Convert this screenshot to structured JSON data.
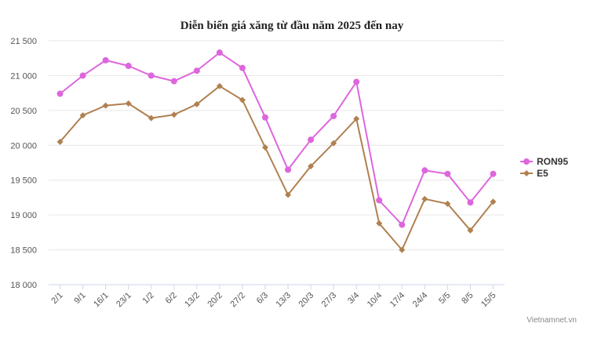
{
  "chart_data": {
    "type": "line",
    "title": "Diễn biến giá xăng từ đầu năm 2025 đến nay",
    "categories": [
      "2/1",
      "9/1",
      "16/1",
      "23/1",
      "1/2",
      "6/2",
      "13/2",
      "20/2",
      "27/2",
      "6/3",
      "13/3",
      "20/3",
      "27/3",
      "3/4",
      "10/4",
      "17/4",
      "24/4",
      "5/5",
      "8/5",
      "15/5"
    ],
    "ylim": [
      18000,
      21500
    ],
    "yticks": [
      18000,
      18500,
      19000,
      19500,
      20000,
      20500,
      21000,
      21500
    ],
    "ytick_labels": [
      "18 000",
      "18 500",
      "19 000",
      "19 500",
      "20 000",
      "20 500",
      "21 000",
      "21 500"
    ],
    "grid": true,
    "legend_position": "right",
    "series": [
      {
        "name": "RON95",
        "color": "#dd66dd",
        "marker": "circle",
        "values": [
          20740,
          21000,
          21220,
          21140,
          21000,
          20920,
          21070,
          21330,
          21110,
          20400,
          19650,
          20080,
          20420,
          20910,
          19210,
          18860,
          19640,
          19590,
          19180,
          19590
        ]
      },
      {
        "name": "E5",
        "color": "#b08050",
        "marker": "diamond",
        "values": [
          20050,
          20430,
          20570,
          20600,
          20390,
          20440,
          20590,
          20850,
          20650,
          19970,
          19290,
          19700,
          20030,
          20380,
          18880,
          18500,
          19230,
          19160,
          18780,
          19190
        ]
      }
    ],
    "credit": "Vietnamnet.vn"
  }
}
